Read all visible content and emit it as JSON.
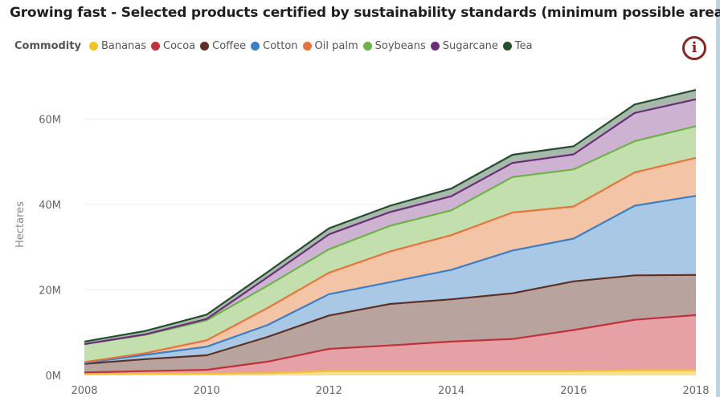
{
  "title": "Growing fast - Selected products certified by sustainability standards (minimum possible area)",
  "legend_title": "Commodity",
  "info_glyph": "i",
  "icons": {
    "info": "info-circle-icon"
  },
  "chart_data": {
    "type": "area",
    "stacked": true,
    "x": [
      2008,
      2009,
      2010,
      2011,
      2012,
      2013,
      2014,
      2015,
      2016,
      2017,
      2018
    ],
    "x_tick_labels": [
      "2008",
      "2010",
      "2012",
      "2014",
      "2016",
      "2018"
    ],
    "x_ticks": [
      2008,
      2010,
      2012,
      2014,
      2016,
      2018
    ],
    "y_tick_labels": [
      "0M",
      "20M",
      "40M",
      "60M"
    ],
    "y_ticks": [
      0,
      20,
      40,
      60
    ],
    "ylabel": "Hectares",
    "ylim": [
      0,
      70
    ],
    "y_unit": "million hectares",
    "grid": true,
    "legend_position": "top-left",
    "series": [
      {
        "name": "Bananas",
        "color": "#f2c12e",
        "fill": "#f8df8c",
        "values": [
          0.3,
          0.4,
          0.4,
          0.5,
          1.0,
          1.0,
          1.0,
          1.0,
          1.0,
          1.2,
          1.2
        ]
      },
      {
        "name": "Cocoa",
        "color": "#c0313a",
        "fill": "#e5a1a6",
        "values": [
          0.4,
          0.6,
          0.9,
          2.7,
          5.2,
          6.0,
          6.9,
          7.5,
          9.6,
          11.8,
          12.9
        ]
      },
      {
        "name": "Coffee",
        "color": "#5e3023",
        "fill": "#b8a39e",
        "values": [
          2.0,
          2.8,
          3.4,
          5.8,
          7.8,
          9.7,
          9.9,
          10.7,
          11.4,
          10.4,
          9.4
        ]
      },
      {
        "name": "Cotton",
        "color": "#3c7fc6",
        "fill": "#a9c8e6",
        "values": [
          0.2,
          1.0,
          2.0,
          2.8,
          5.0,
          5.1,
          6.9,
          10.0,
          10.0,
          16.3,
          18.5
        ]
      },
      {
        "name": "Oil palm",
        "color": "#e8733a",
        "fill": "#f4c4a6",
        "values": [
          0.2,
          0.4,
          1.5,
          4.0,
          5.0,
          7.2,
          8.1,
          8.9,
          7.5,
          7.8,
          8.9
        ]
      },
      {
        "name": "Soybeans",
        "color": "#6db34a",
        "fill": "#c3dfae",
        "values": [
          4.2,
          4.3,
          4.7,
          5.2,
          5.5,
          6.0,
          5.8,
          8.3,
          8.7,
          7.3,
          7.4
        ]
      },
      {
        "name": "Sugarcane",
        "color": "#6b2d7a",
        "fill": "#cdb2d2",
        "values": [
          0.0,
          0.1,
          0.3,
          2.0,
          3.5,
          3.2,
          3.3,
          3.3,
          3.5,
          6.6,
          6.3
        ]
      },
      {
        "name": "Tea",
        "color": "#244f2e",
        "fill": "#a8b8ab",
        "values": [
          0.6,
          0.8,
          1.0,
          1.2,
          1.4,
          1.5,
          1.8,
          1.9,
          1.9,
          2.0,
          2.2
        ]
      }
    ]
  }
}
